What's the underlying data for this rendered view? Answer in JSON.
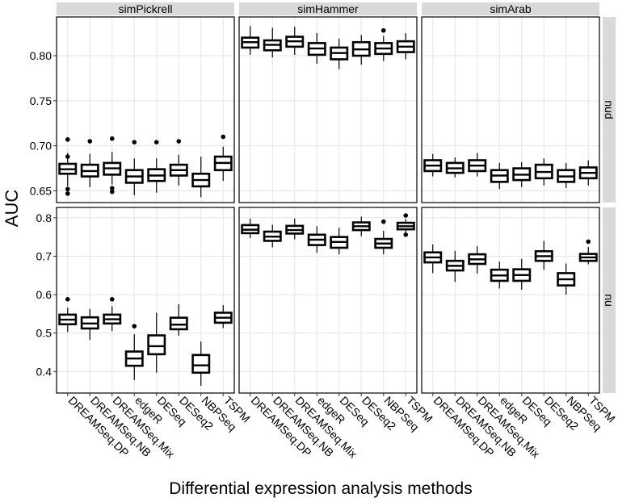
{
  "chart_data": {
    "type": "boxplot",
    "ylabel": "AUC",
    "xlabel": "Differential expression analysis methods",
    "methods": [
      "DREAMSeq.DP",
      "DREAMSeq.NB",
      "DREAMSeq.Mix",
      "edgeR",
      "DESeq",
      "DESeq2",
      "NBPSeq",
      "TSPM"
    ],
    "columns": [
      "simPickrell",
      "simHammer",
      "simArab"
    ],
    "rows": [
      {
        "label": "nud",
        "ylim": [
          0.637,
          0.843
        ],
        "ticks": [
          0.65,
          0.7,
          0.75,
          0.8
        ],
        "tick_labels": [
          "0.65",
          "0.70",
          "0.75",
          "0.80"
        ],
        "panels": [
          {
            "column": "simPickrell",
            "boxes": [
              {
                "min": 0.655,
                "q1": 0.669,
                "median": 0.674,
                "q3": 0.68,
                "max": 0.692,
                "outliers": [
                  0.707,
                  0.688,
                  0.652,
                  0.647
                ]
              },
              {
                "min": 0.654,
                "q1": 0.666,
                "median": 0.672,
                "q3": 0.679,
                "max": 0.691,
                "outliers": [
                  0.705
                ]
              },
              {
                "min": 0.657,
                "q1": 0.668,
                "median": 0.675,
                "q3": 0.681,
                "max": 0.693,
                "outliers": [
                  0.708,
                  0.653,
                  0.649
                ]
              },
              {
                "min": 0.645,
                "q1": 0.659,
                "median": 0.666,
                "q3": 0.673,
                "max": 0.686,
                "outliers": [
                  0.704
                ]
              },
              {
                "min": 0.648,
                "q1": 0.661,
                "median": 0.667,
                "q3": 0.674,
                "max": 0.686,
                "outliers": [
                  0.704
                ]
              },
              {
                "min": 0.656,
                "q1": 0.667,
                "median": 0.673,
                "q3": 0.679,
                "max": 0.69,
                "outliers": [
                  0.705
                ]
              },
              {
                "min": 0.643,
                "q1": 0.655,
                "median": 0.662,
                "q3": 0.669,
                "max": 0.688,
                "outliers": []
              },
              {
                "min": 0.661,
                "q1": 0.673,
                "median": 0.681,
                "q3": 0.688,
                "max": 0.699,
                "outliers": [
                  0.71
                ]
              }
            ]
          },
          {
            "column": "simHammer",
            "boxes": [
              {
                "min": 0.801,
                "q1": 0.809,
                "median": 0.815,
                "q3": 0.82,
                "max": 0.833,
                "outliers": []
              },
              {
                "min": 0.798,
                "q1": 0.806,
                "median": 0.812,
                "q3": 0.817,
                "max": 0.831,
                "outliers": []
              },
              {
                "min": 0.801,
                "q1": 0.81,
                "median": 0.816,
                "q3": 0.821,
                "max": 0.832,
                "outliers": []
              },
              {
                "min": 0.791,
                "q1": 0.801,
                "median": 0.808,
                "q3": 0.814,
                "max": 0.825,
                "outliers": []
              },
              {
                "min": 0.785,
                "q1": 0.796,
                "median": 0.803,
                "q3": 0.809,
                "max": 0.819,
                "outliers": []
              },
              {
                "min": 0.79,
                "q1": 0.8,
                "median": 0.807,
                "q3": 0.815,
                "max": 0.823,
                "outliers": []
              },
              {
                "min": 0.794,
                "q1": 0.802,
                "median": 0.808,
                "q3": 0.814,
                "max": 0.822,
                "outliers": [
                  0.828
                ]
              },
              {
                "min": 0.796,
                "q1": 0.804,
                "median": 0.81,
                "q3": 0.816,
                "max": 0.825,
                "outliers": []
              }
            ]
          },
          {
            "column": "simArab",
            "boxes": [
              {
                "min": 0.666,
                "q1": 0.672,
                "median": 0.678,
                "q3": 0.684,
                "max": 0.691,
                "outliers": []
              },
              {
                "min": 0.665,
                "q1": 0.67,
                "median": 0.675,
                "q3": 0.681,
                "max": 0.687,
                "outliers": []
              },
              {
                "min": 0.666,
                "q1": 0.672,
                "median": 0.678,
                "q3": 0.684,
                "max": 0.692,
                "outliers": []
              },
              {
                "min": 0.652,
                "q1": 0.66,
                "median": 0.667,
                "q3": 0.673,
                "max": 0.681,
                "outliers": []
              },
              {
                "min": 0.654,
                "q1": 0.662,
                "median": 0.668,
                "q3": 0.675,
                "max": 0.682,
                "outliers": []
              },
              {
                "min": 0.656,
                "q1": 0.664,
                "median": 0.671,
                "q3": 0.679,
                "max": 0.686,
                "outliers": []
              },
              {
                "min": 0.653,
                "q1": 0.66,
                "median": 0.666,
                "q3": 0.673,
                "max": 0.681,
                "outliers": []
              },
              {
                "min": 0.656,
                "q1": 0.664,
                "median": 0.67,
                "q3": 0.676,
                "max": 0.684,
                "outliers": []
              }
            ]
          }
        ]
      },
      {
        "label": "nu",
        "ylim": [
          0.344,
          0.827
        ],
        "ticks": [
          0.4,
          0.5,
          0.6,
          0.7,
          0.8
        ],
        "tick_labels": [
          "0.4",
          "0.5",
          "0.6",
          "0.7",
          "0.8"
        ],
        "panels": [
          {
            "column": "simPickrell",
            "boxes": [
              {
                "min": 0.503,
                "q1": 0.523,
                "median": 0.535,
                "q3": 0.548,
                "max": 0.566,
                "outliers": [
                  0.588
                ]
              },
              {
                "min": 0.482,
                "q1": 0.512,
                "median": 0.525,
                "q3": 0.541,
                "max": 0.563,
                "outliers": []
              },
              {
                "min": 0.505,
                "q1": 0.525,
                "median": 0.536,
                "q3": 0.548,
                "max": 0.57,
                "outliers": [
                  0.588
                ]
              },
              {
                "min": 0.378,
                "q1": 0.415,
                "median": 0.434,
                "q3": 0.452,
                "max": 0.497,
                "outliers": [
                  0.518
                ]
              },
              {
                "min": 0.397,
                "q1": 0.445,
                "median": 0.466,
                "q3": 0.494,
                "max": 0.553,
                "outliers": []
              },
              {
                "min": 0.493,
                "q1": 0.51,
                "median": 0.522,
                "q3": 0.54,
                "max": 0.575,
                "outliers": []
              },
              {
                "min": 0.363,
                "q1": 0.397,
                "median": 0.416,
                "q3": 0.443,
                "max": 0.478,
                "outliers": []
              },
              {
                "min": 0.513,
                "q1": 0.527,
                "median": 0.54,
                "q3": 0.553,
                "max": 0.573,
                "outliers": []
              }
            ]
          },
          {
            "column": "simHammer",
            "boxes": [
              {
                "min": 0.747,
                "q1": 0.76,
                "median": 0.769,
                "q3": 0.781,
                "max": 0.798,
                "outliers": []
              },
              {
                "min": 0.723,
                "q1": 0.74,
                "median": 0.751,
                "q3": 0.764,
                "max": 0.782,
                "outliers": []
              },
              {
                "min": 0.744,
                "q1": 0.759,
                "median": 0.768,
                "q3": 0.779,
                "max": 0.798,
                "outliers": []
              },
              {
                "min": 0.709,
                "q1": 0.729,
                "median": 0.743,
                "q3": 0.756,
                "max": 0.778,
                "outliers": []
              },
              {
                "min": 0.705,
                "q1": 0.722,
                "median": 0.737,
                "q3": 0.75,
                "max": 0.774,
                "outliers": []
              },
              {
                "min": 0.752,
                "q1": 0.768,
                "median": 0.778,
                "q3": 0.788,
                "max": 0.803,
                "outliers": []
              },
              {
                "min": 0.705,
                "q1": 0.722,
                "median": 0.733,
                "q3": 0.745,
                "max": 0.766,
                "outliers": [
                  0.79
                ]
              },
              {
                "min": 0.762,
                "q1": 0.77,
                "median": 0.778,
                "q3": 0.787,
                "max": 0.797,
                "outliers": [
                  0.806,
                  0.756
                ]
              }
            ]
          },
          {
            "column": "simArab",
            "boxes": [
              {
                "min": 0.656,
                "q1": 0.684,
                "median": 0.697,
                "q3": 0.71,
                "max": 0.731,
                "outliers": []
              },
              {
                "min": 0.633,
                "q1": 0.663,
                "median": 0.675,
                "q3": 0.688,
                "max": 0.714,
                "outliers": []
              },
              {
                "min": 0.655,
                "q1": 0.68,
                "median": 0.692,
                "q3": 0.705,
                "max": 0.726,
                "outliers": []
              },
              {
                "min": 0.616,
                "q1": 0.636,
                "median": 0.65,
                "q3": 0.665,
                "max": 0.686,
                "outliers": []
              },
              {
                "min": 0.613,
                "q1": 0.636,
                "median": 0.651,
                "q3": 0.666,
                "max": 0.693,
                "outliers": []
              },
              {
                "min": 0.665,
                "q1": 0.688,
                "median": 0.7,
                "q3": 0.713,
                "max": 0.74,
                "outliers": []
              },
              {
                "min": 0.6,
                "q1": 0.624,
                "median": 0.64,
                "q3": 0.656,
                "max": 0.681,
                "outliers": []
              },
              {
                "min": 0.679,
                "q1": 0.688,
                "median": 0.697,
                "q3": 0.706,
                "max": 0.724,
                "outliers": [
                  0.738
                ]
              }
            ]
          }
        ]
      }
    ],
    "colors": {
      "panel_bg": "#ffffff",
      "grid": "#e5e5e5",
      "strip_bg": "#d9d9d9",
      "box_stroke": "#000000",
      "box_fill": "#ffffff",
      "text": "#000000"
    }
  }
}
